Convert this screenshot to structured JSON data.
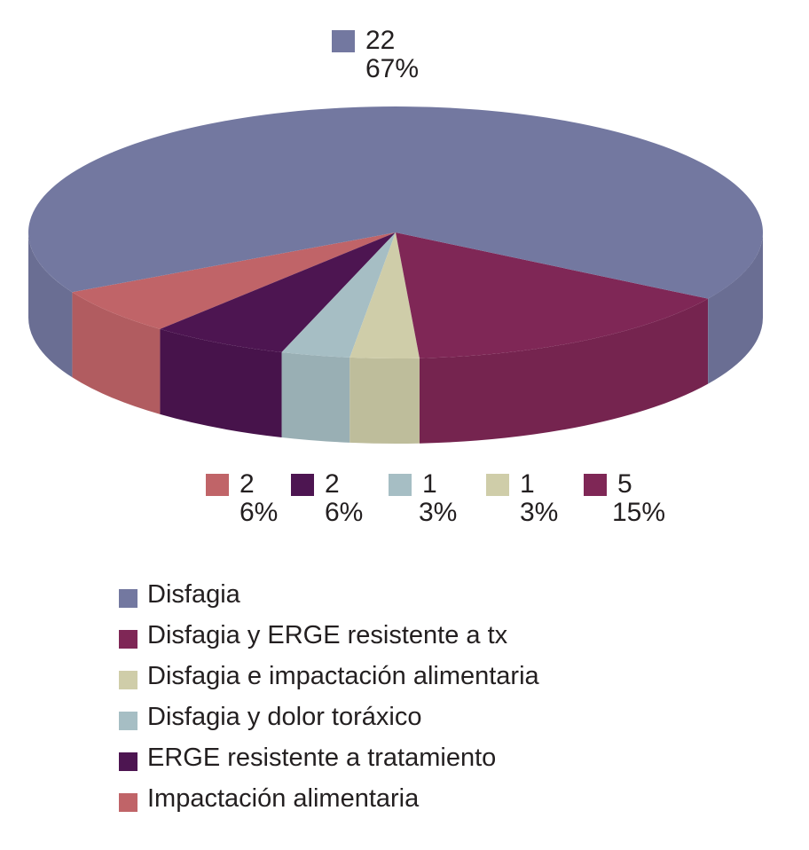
{
  "chart_data": {
    "type": "pie",
    "three_d": true,
    "legend_position": "bottom",
    "slices": [
      {
        "category": "Disfagia",
        "value": 22,
        "percent": "67%",
        "color": "#7378a0"
      },
      {
        "category": "Disfagia y ERGE resistente a tx",
        "value": 5,
        "percent": "15%",
        "color": "#7f2756"
      },
      {
        "category": "Disfagia e impactación alimentaria",
        "value": 1,
        "percent": "3%",
        "color": "#cfcda9"
      },
      {
        "category": "Disfagia y dolor toráxico",
        "value": 1,
        "percent": "3%",
        "color": "#a6bec4"
      },
      {
        "category": "ERGE resistente a tratamiento",
        "value": 2,
        "percent": "6%",
        "color": "#4d1551"
      },
      {
        "category": "Impactación alimentaria",
        "value": 2,
        "percent": "6%",
        "color": "#c06468"
      }
    ]
  }
}
